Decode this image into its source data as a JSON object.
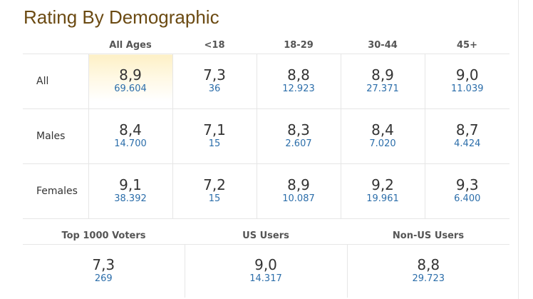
{
  "title": "Rating By Demographic",
  "columns": [
    "All Ages",
    "<18",
    "18-29",
    "30-44",
    "45+"
  ],
  "rows": [
    {
      "label": "All",
      "cells": [
        {
          "rating": "8,9",
          "votes": "69.604"
        },
        {
          "rating": "7,3",
          "votes": "36"
        },
        {
          "rating": "8,8",
          "votes": "12.923"
        },
        {
          "rating": "8,9",
          "votes": "27.371"
        },
        {
          "rating": "9,0",
          "votes": "11.039"
        }
      ]
    },
    {
      "label": "Males",
      "cells": [
        {
          "rating": "8,4",
          "votes": "14.700"
        },
        {
          "rating": "7,1",
          "votes": "15"
        },
        {
          "rating": "8,3",
          "votes": "2.607"
        },
        {
          "rating": "8,4",
          "votes": "7.020"
        },
        {
          "rating": "8,7",
          "votes": "4.424"
        }
      ]
    },
    {
      "label": "Females",
      "cells": [
        {
          "rating": "9,1",
          "votes": "38.392"
        },
        {
          "rating": "7,2",
          "votes": "15"
        },
        {
          "rating": "8,9",
          "votes": "10.087"
        },
        {
          "rating": "9,2",
          "votes": "19.961"
        },
        {
          "rating": "9,3",
          "votes": "6.400"
        }
      ]
    }
  ],
  "voter_groups": [
    {
      "label": "Top 1000 Voters",
      "rating": "7,3",
      "votes": "269"
    },
    {
      "label": "US Users",
      "rating": "9,0",
      "votes": "14.317"
    },
    {
      "label": "Non-US Users",
      "rating": "8,8",
      "votes": "29.723"
    }
  ],
  "colors": {
    "title": "#6b4a12",
    "votes_link": "#2c6eaa",
    "highlight": "#fdf0c6",
    "grid": "#e6e6e6"
  }
}
